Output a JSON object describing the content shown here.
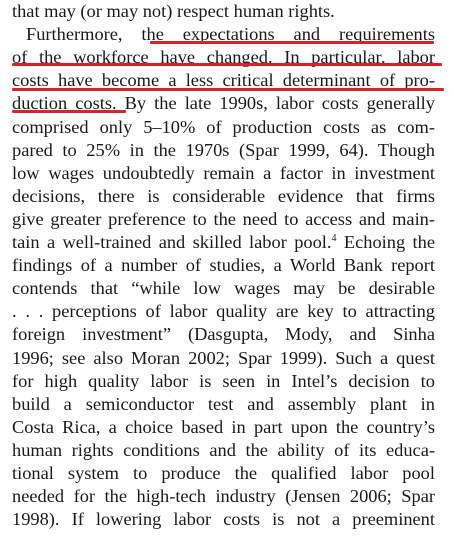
{
  "lines": [
    {
      "text": "that may (or may not) respect human rights."
    },
    {
      "text": "Furthermore, the expectations and requirements"
    },
    {
      "text": "of the workforce have changed. In particular, labor"
    },
    {
      "text": "costs have become a less critical determinant of pro-"
    },
    {
      "text": "duction costs. By the late 1990s, labor costs generally"
    },
    {
      "text": "comprised only 5–10% of production costs as com-"
    },
    {
      "text": "pared to 25% in the 1970s (Spar 1999, 64). Though"
    },
    {
      "text": "low wages undoubtedly remain a factor in investment"
    },
    {
      "text": "decisions, there is considerable evidence that firms"
    },
    {
      "text": "give greater preference to the need to access and main-"
    },
    {
      "text": "tain a well-trained and skilled labor pool.",
      "note": "4",
      "after": " Echoing the"
    },
    {
      "text": "findings of a number of studies, a World Bank report"
    },
    {
      "text": "contends that “while low wages may be desirable"
    },
    {
      "text": ". . . perceptions of labor quality are key to attracting"
    },
    {
      "text": "foreign investment” (Dasgupta, Mody, and Sinha"
    },
    {
      "text": "1996; see also Moran 2002; Spar 1999). Such a quest"
    },
    {
      "text": "for high quality labor is seen in Intel’s decision to"
    },
    {
      "text": "build a semiconductor test and assembly plant in"
    },
    {
      "text": "Costa Rica, a choice based in part upon the country’s"
    },
    {
      "text": "human rights conditions and the ability of its educa-"
    },
    {
      "text": "tional system to produce the qualified labor pool"
    },
    {
      "text": "needed for the high-tech industry (Jensen 2006; Spar"
    },
    {
      "text": "1998). If lowering labor costs is not a preeminent"
    }
  ]
}
